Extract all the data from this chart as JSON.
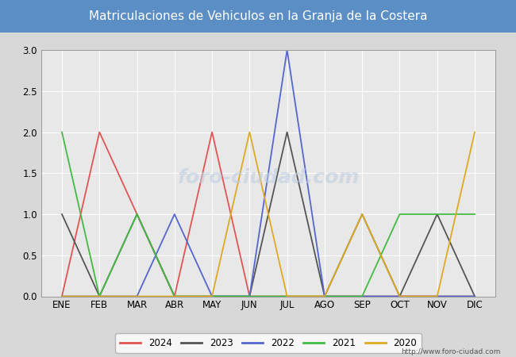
{
  "title": "Matriculaciones de Vehiculos en la Granja de la Costera",
  "title_bg_color": "#5b8ec4",
  "title_text_color": "white",
  "months": [
    "ENE",
    "FEB",
    "MAR",
    "ABR",
    "MAY",
    "JUN",
    "JUL",
    "AGO",
    "SEP",
    "OCT",
    "NOV",
    "DIC"
  ],
  "series": {
    "2024": {
      "color": "#e05555",
      "data": [
        0,
        2,
        1,
        0,
        2,
        0,
        0,
        0,
        0,
        0,
        0,
        0
      ]
    },
    "2023": {
      "color": "#555555",
      "data": [
        1,
        0,
        1,
        0,
        0,
        0,
        2,
        0,
        1,
        0,
        1,
        0
      ]
    },
    "2022": {
      "color": "#5566cc",
      "data": [
        0,
        0,
        0,
        1,
        0,
        0,
        3,
        0,
        0,
        0,
        0,
        0
      ]
    },
    "2021": {
      "color": "#44bb44",
      "data": [
        2,
        0,
        1,
        0,
        0,
        0,
        0,
        0,
        0,
        1,
        1,
        1
      ]
    },
    "2020": {
      "color": "#ddaa22",
      "data": [
        0,
        0,
        0,
        0,
        0,
        2,
        0,
        0,
        1,
        0,
        0,
        2
      ]
    }
  },
  "ylim": [
    0,
    3.0
  ],
  "yticks": [
    0.0,
    0.5,
    1.0,
    1.5,
    2.0,
    2.5,
    3.0
  ],
  "url": "http://www.foro-ciudad.com",
  "outer_bg_color": "#d8d8d8",
  "plot_bg_color": "#e8e8e8",
  "grid_color": "white",
  "legend_years": [
    "2024",
    "2023",
    "2022",
    "2021",
    "2020"
  ],
  "watermark_text": "foro-ciudad.com",
  "watermark_color": "#c0cfe0",
  "watermark_alpha": 0.6
}
